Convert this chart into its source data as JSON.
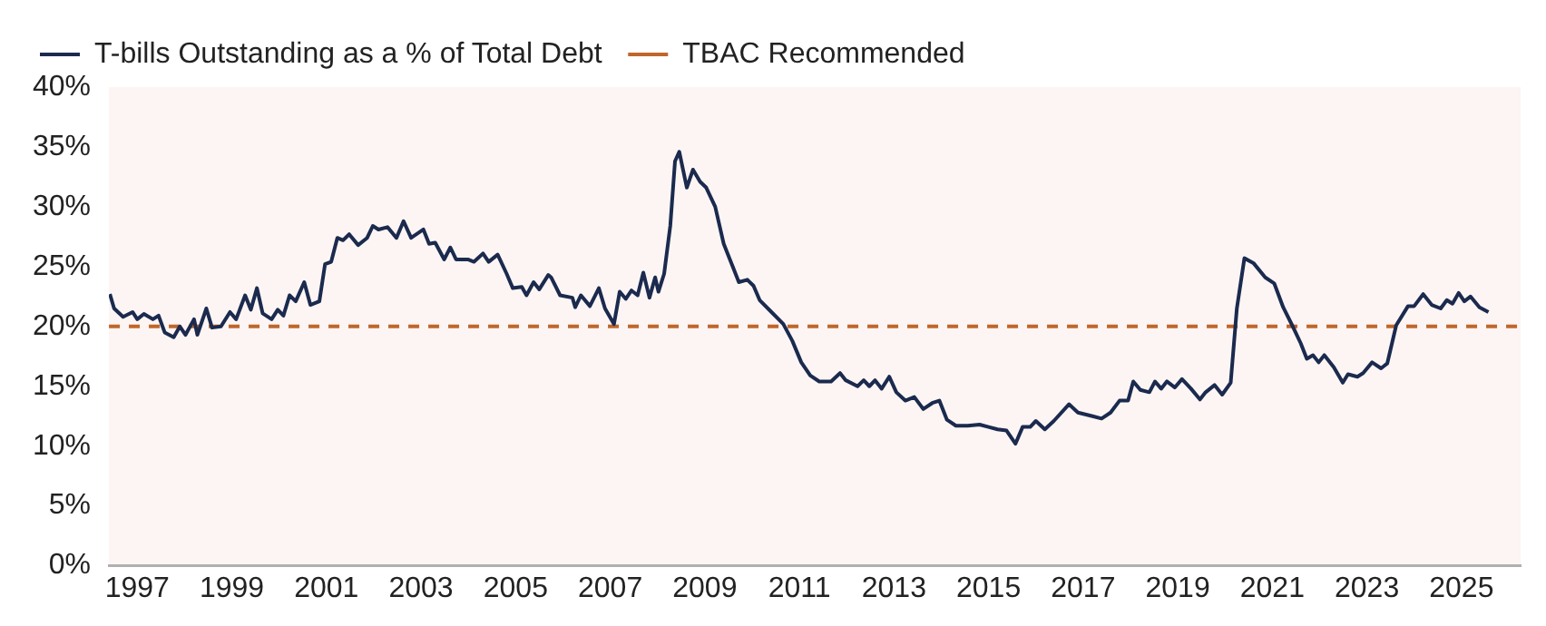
{
  "chart_data": {
    "type": "line",
    "x": [
      1996.42,
      1996.51,
      1996.7,
      1996.9,
      1997.0,
      1997.14,
      1997.33,
      1997.45,
      1997.58,
      1997.77,
      1997.9,
      1998.02,
      1998.2,
      1998.27,
      1998.46,
      1998.58,
      1998.77,
      1998.96,
      1999.09,
      1999.28,
      1999.4,
      1999.53,
      1999.65,
      1999.84,
      1999.97,
      2000.09,
      2000.22,
      2000.35,
      2000.53,
      2000.66,
      2000.85,
      2000.97,
      2001.1,
      2001.23,
      2001.35,
      2001.48,
      2001.67,
      2001.86,
      2001.98,
      2002.1,
      2002.29,
      2002.48,
      2002.63,
      2002.79,
      2003.05,
      2003.17,
      2003.3,
      2003.49,
      2003.62,
      2003.74,
      2003.99,
      2004.12,
      2004.31,
      2004.43,
      2004.62,
      2004.81,
      2004.94,
      2005.13,
      2005.23,
      2005.38,
      2005.5,
      2005.69,
      2005.75,
      2005.94,
      2006.2,
      2006.26,
      2006.38,
      2006.57,
      2006.76,
      2006.89,
      2007.08,
      2007.2,
      2007.33,
      2007.45,
      2007.58,
      2007.7,
      2007.83,
      2007.95,
      2008.02,
      2008.14,
      2008.27,
      2008.37,
      2008.46,
      2008.62,
      2008.75,
      2008.9,
      2009.03,
      2009.22,
      2009.4,
      2009.59,
      2009.72,
      2009.9,
      2010.03,
      2010.16,
      2010.41,
      2010.66,
      2010.85,
      2011.04,
      2011.23,
      2011.42,
      2011.67,
      2011.86,
      2011.98,
      2012.23,
      2012.36,
      2012.48,
      2012.6,
      2012.74,
      2012.9,
      2013.05,
      2013.24,
      2013.43,
      2013.62,
      2013.81,
      2013.96,
      2014.12,
      2014.31,
      2014.56,
      2014.81,
      2015.0,
      2015.19,
      2015.38,
      2015.57,
      2015.72,
      2015.88,
      2016.0,
      2016.19,
      2016.38,
      2016.7,
      2016.89,
      2017.2,
      2017.39,
      2017.58,
      2017.77,
      2017.95,
      2018.06,
      2018.21,
      2018.4,
      2018.52,
      2018.65,
      2018.77,
      2018.94,
      2019.09,
      2019.28,
      2019.47,
      2019.59,
      2019.78,
      2019.94,
      2020.12,
      2020.25,
      2020.41,
      2020.6,
      2020.85,
      2021.04,
      2021.23,
      2021.42,
      2021.6,
      2021.73,
      2021.86,
      2021.98,
      2022.1,
      2022.3,
      2022.49,
      2022.6,
      2022.8,
      2022.92,
      2023.11,
      2023.3,
      2023.43,
      2023.62,
      2023.87,
      2024.0,
      2024.19,
      2024.37,
      2024.56,
      2024.69,
      2024.81,
      2024.94,
      2025.06,
      2025.19,
      2025.38,
      2025.57
    ],
    "series": [
      {
        "name": "T-bills Outstanding as a % of Total Debt",
        "color": "#1b2a4e",
        "values": [
          22.7,
          21.5,
          20.8,
          21.2,
          20.6,
          21.05,
          20.6,
          20.9,
          19.5,
          19.1,
          20.0,
          19.3,
          20.6,
          19.3,
          21.5,
          19.9,
          20.0,
          21.2,
          20.6,
          22.6,
          21.4,
          23.2,
          21.1,
          20.6,
          21.4,
          20.9,
          22.6,
          22.1,
          23.7,
          21.8,
          22.1,
          25.2,
          25.4,
          27.4,
          27.2,
          27.7,
          26.8,
          27.4,
          28.4,
          28.1,
          28.3,
          27.4,
          28.8,
          27.4,
          28.1,
          26.9,
          27.0,
          25.6,
          26.6,
          25.6,
          25.6,
          25.4,
          26.1,
          25.4,
          26.0,
          24.4,
          23.2,
          23.3,
          22.6,
          23.7,
          23.1,
          24.3,
          24.1,
          22.6,
          22.4,
          21.6,
          22.6,
          21.7,
          23.2,
          21.5,
          20.2,
          22.9,
          22.3,
          23.0,
          22.6,
          24.5,
          22.4,
          24.1,
          22.9,
          24.4,
          28.4,
          33.8,
          34.6,
          31.6,
          33.1,
          32.1,
          31.6,
          30.0,
          26.9,
          25.0,
          23.7,
          23.9,
          23.4,
          22.2,
          21.2,
          20.2,
          18.8,
          17.0,
          15.9,
          15.4,
          15.4,
          16.1,
          15.5,
          15.0,
          15.5,
          15.0,
          15.5,
          14.8,
          15.8,
          14.5,
          13.8,
          14.1,
          13.1,
          13.6,
          13.8,
          12.2,
          11.7,
          11.7,
          11.8,
          11.6,
          11.4,
          11.3,
          10.2,
          11.6,
          11.6,
          12.1,
          11.4,
          12.1,
          13.5,
          12.8,
          12.5,
          12.3,
          12.8,
          13.8,
          13.8,
          15.4,
          14.7,
          14.5,
          15.4,
          14.8,
          15.4,
          14.9,
          15.6,
          14.8,
          13.9,
          14.5,
          15.1,
          14.3,
          15.3,
          21.5,
          25.7,
          25.3,
          24.1,
          23.6,
          21.6,
          20.1,
          18.6,
          17.3,
          17.6,
          17.0,
          17.6,
          16.6,
          15.3,
          16.0,
          15.8,
          16.1,
          17.0,
          16.5,
          16.9,
          20.1,
          21.7,
          21.7,
          22.7,
          21.8,
          21.5,
          22.2,
          21.9,
          22.8,
          22.1,
          22.5,
          21.6,
          21.2
        ]
      }
    ],
    "ref_lines": [
      {
        "axis": "y",
        "value": 20,
        "label": "TBAC Recommended",
        "color": "#c0662b",
        "line_style": "dashed"
      }
    ],
    "xlim": [
      1996.4,
      2026.25
    ],
    "xticks": [
      1997,
      1999,
      2001,
      2003,
      2005,
      2007,
      2009,
      2011,
      2013,
      2015,
      2017,
      2019,
      2021,
      2023,
      2025
    ],
    "ylim": [
      0,
      40
    ],
    "yticks": [
      {
        "value": 0,
        "label": "0%"
      },
      {
        "value": 5,
        "label": "5%"
      },
      {
        "value": 10,
        "label": "10%"
      },
      {
        "value": 15,
        "label": "15%"
      },
      {
        "value": 20,
        "label": "20%"
      },
      {
        "value": 25,
        "label": "25%"
      },
      {
        "value": 30,
        "label": "30%"
      },
      {
        "value": 35,
        "label": "35%"
      },
      {
        "value": 40,
        "label": "40%"
      }
    ],
    "grid": false,
    "legend": "top left"
  }
}
